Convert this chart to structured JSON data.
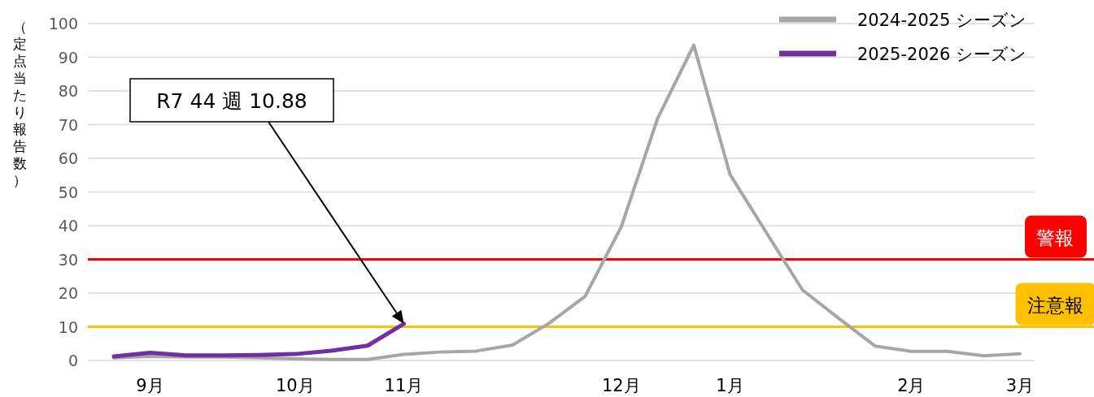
{
  "chart_data": {
    "type": "line",
    "ylabel": "（定点当たり報告数）",
    "categories": [
      null,
      "9月",
      null,
      null,
      null,
      "10月",
      null,
      null,
      "11月",
      null,
      null,
      null,
      null,
      null,
      "12月",
      null,
      null,
      "1月",
      null,
      null,
      null,
      null,
      "2月",
      null,
      null,
      "3月"
    ],
    "ylim": [
      0,
      100
    ],
    "yticks": [
      0,
      10,
      20,
      30,
      40,
      50,
      60,
      70,
      80,
      90,
      100
    ],
    "grid": "y",
    "legend": "top right",
    "marker": "none",
    "line_style": "solid",
    "series": [
      {
        "name": "2024-2025 シーズン",
        "color": "#a6a6a6",
        "values": [
          0.8,
          1.2,
          1.0,
          1.0,
          0.8,
          0.5,
          0.3,
          0.3,
          1.8,
          2.5,
          2.8,
          4.6,
          11,
          19,
          39.7,
          71.8,
          93.6,
          55.2,
          38,
          20.9,
          12.5,
          4.3,
          2.7,
          2.7,
          1.4,
          2.0
        ]
      },
      {
        "name": "2025-2026 シーズン",
        "color": "#7030a0",
        "values": [
          1.2,
          2.3,
          1.5,
          1.5,
          1.6,
          1.9,
          2.9,
          4.4,
          10.88,
          null,
          null,
          null,
          null,
          null,
          null,
          null,
          null,
          null,
          null,
          null,
          null,
          null,
          null,
          null,
          null,
          null
        ]
      }
    ],
    "ref_lines": [
      {
        "axis": "y",
        "value": 30,
        "label": "警報",
        "color": "#ff0000"
      },
      {
        "axis": "y",
        "value": 10,
        "label": "注意報",
        "color": "#ffc000"
      }
    ],
    "annotations": [
      "R7 44 週 10.88"
    ]
  }
}
